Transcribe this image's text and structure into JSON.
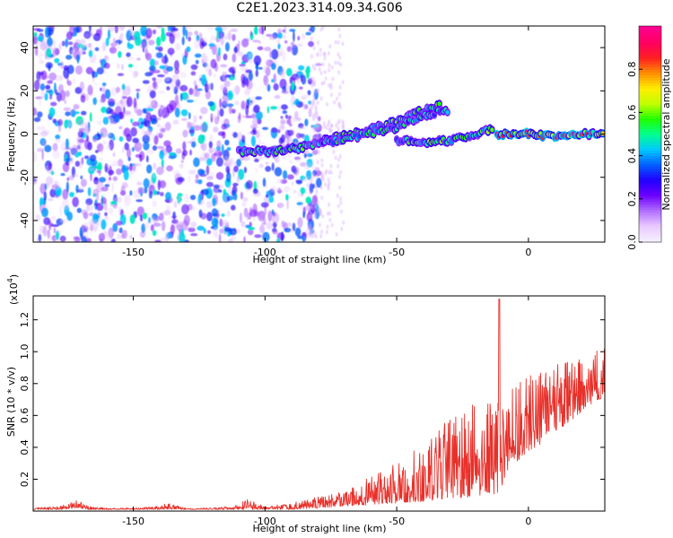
{
  "title": "C2E1.2023.314.09.34.G06",
  "colors": {
    "snr_line": "#e8302a",
    "axis": "#000000",
    "colorbar_stops": [
      "#f5f0ff",
      "#e9c8ff",
      "#b06cff",
      "#6c00ff",
      "#2000ff",
      "#0060ff",
      "#00c8ff",
      "#00ff90",
      "#20ff00",
      "#c0ff00",
      "#ffee00",
      "#ff9000",
      "#ff2020",
      "#ff0060",
      "#ff0090"
    ]
  },
  "chart_data": [
    {
      "type": "heatmap",
      "title": "",
      "xlabel": "Height of straight line (km)",
      "ylabel": "Frequency (Hz)",
      "xlim": [
        -188,
        29
      ],
      "ylim": [
        -50,
        50
      ],
      "xticks": [
        -150,
        -100,
        -50,
        0
      ],
      "xtick_labels": [
        "-150",
        "-100",
        "-50",
        "0"
      ],
      "yticks": [
        -40,
        -20,
        0,
        20,
        40
      ],
      "ytick_labels": [
        "-40",
        "-20",
        "0",
        "20",
        "40"
      ],
      "colorbar": {
        "label": "Normalized spectral amplitude",
        "range": [
          0,
          1
        ],
        "ticks": [
          0,
          0.2,
          0.4,
          0.6,
          0.8
        ],
        "tick_labels": [
          "0.0",
          "0.2",
          "0.4",
          "0.6",
          "0.8"
        ]
      },
      "noise_region": {
        "x": [
          -188,
          -81
        ],
        "y": [
          -50,
          50
        ],
        "typical_amplitude": 0.15
      },
      "traces": [
        {
          "points": [
            [
              -110,
              -8
            ],
            [
              -95,
              -8
            ],
            [
              -85,
              -6
            ],
            [
              -78,
              -3
            ],
            [
              -70,
              -1
            ],
            [
              -60,
              2
            ],
            [
              -50,
              6
            ],
            [
              -40,
              11
            ],
            [
              -33,
              14
            ]
          ],
          "amplitude": 0.55
        },
        {
          "points": [
            [
              -78,
              -4
            ],
            [
              -68,
              -2
            ],
            [
              -58,
              1
            ],
            [
              -50,
              3
            ],
            [
              -45,
              6
            ],
            [
              -40,
              8
            ],
            [
              -35,
              10
            ],
            [
              -30,
              11
            ]
          ],
          "amplitude": 0.5
        },
        {
          "points": [
            [
              -50,
              -3
            ],
            [
              -40,
              -4
            ],
            [
              -30,
              -3
            ],
            [
              -20,
              0
            ],
            [
              -13,
              3
            ]
          ],
          "amplitude": 0.55
        },
        {
          "points": [
            [
              -12,
              0
            ],
            [
              -5,
              0
            ],
            [
              0,
              0
            ],
            [
              10,
              -1
            ],
            [
              20,
              0
            ],
            [
              29,
              0
            ]
          ],
          "amplitude": 0.9
        }
      ]
    },
    {
      "type": "line",
      "title": "",
      "xlabel": "Height of straight line (km)",
      "ylabel": "SNR (10 * v/v)",
      "y_multiplier_label": "(x10",
      "y_multiplier_exp": "4",
      "xlim": [
        -188,
        29
      ],
      "ylim": [
        0,
        1.35
      ],
      "xticks": [
        -150,
        -100,
        -50,
        0
      ],
      "xtick_labels": [
        "-150",
        "-100",
        "-50",
        "0"
      ],
      "yticks": [
        0.2,
        0.4,
        0.6,
        0.8,
        1.0,
        1.2
      ],
      "ytick_labels": [
        "0.2",
        "0.4",
        "0.6",
        "0.8",
        "1.0",
        "1.2"
      ],
      "envelope": {
        "x": [
          -188,
          -178,
          -171,
          -167,
          -160,
          -150,
          -141,
          -137,
          -130,
          -120,
          -110,
          -107,
          -100,
          -90,
          -80,
          -70,
          -60,
          -50,
          -40,
          -30,
          -20,
          -15,
          -10,
          -5,
          0,
          5,
          10,
          15,
          20,
          25,
          29
        ],
        "base": [
          0.01,
          0.01,
          0.02,
          0.01,
          0.01,
          0.01,
          0.01,
          0.01,
          0.01,
          0.01,
          0.01,
          0.01,
          0.01,
          0.01,
          0.02,
          0.03,
          0.04,
          0.05,
          0.06,
          0.08,
          0.09,
          0.1,
          0.12,
          0.3,
          0.38,
          0.42,
          0.5,
          0.55,
          0.62,
          0.68,
          0.72
        ],
        "peak": [
          0.02,
          0.03,
          0.07,
          0.03,
          0.02,
          0.02,
          0.03,
          0.05,
          0.02,
          0.02,
          0.04,
          0.08,
          0.03,
          0.05,
          0.09,
          0.13,
          0.22,
          0.3,
          0.42,
          0.58,
          0.68,
          0.72,
          0.66,
          0.8,
          0.88,
          0.9,
          0.93,
          0.95,
          0.97,
          1.0,
          1.02
        ]
      },
      "spike": {
        "x": -11,
        "y": 1.33
      }
    }
  ]
}
